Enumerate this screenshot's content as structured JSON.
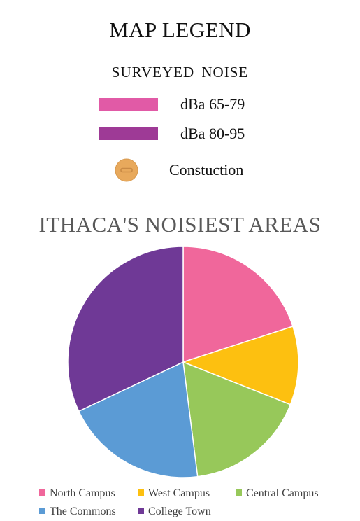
{
  "legend": {
    "title": "MAP LEGEND",
    "subtitle": "SURVEYED  NOISE",
    "items": [
      {
        "label": "dBa 65-79",
        "color": "#e15aa6"
      },
      {
        "label": "dBa 80-95",
        "color": "#9e3a96"
      }
    ],
    "construction": {
      "label": "Constuction",
      "icon": "construction-icon",
      "color": "#e8a95c"
    }
  },
  "chart_data": {
    "type": "pie",
    "title": "ITHACA'S NOISIEST AREAS",
    "legend_position": "bottom",
    "slices": [
      {
        "name": "North Campus",
        "value": 20,
        "color": "#f0679b"
      },
      {
        "name": "West Campus",
        "value": 11,
        "color": "#fdc010"
      },
      {
        "name": "Central Campus",
        "value": 17,
        "color": "#97c85a"
      },
      {
        "name": "The Commons",
        "value": 20,
        "color": "#5b9bd5"
      },
      {
        "name": "College Town",
        "value": 32,
        "color": "#6f3996"
      }
    ]
  }
}
